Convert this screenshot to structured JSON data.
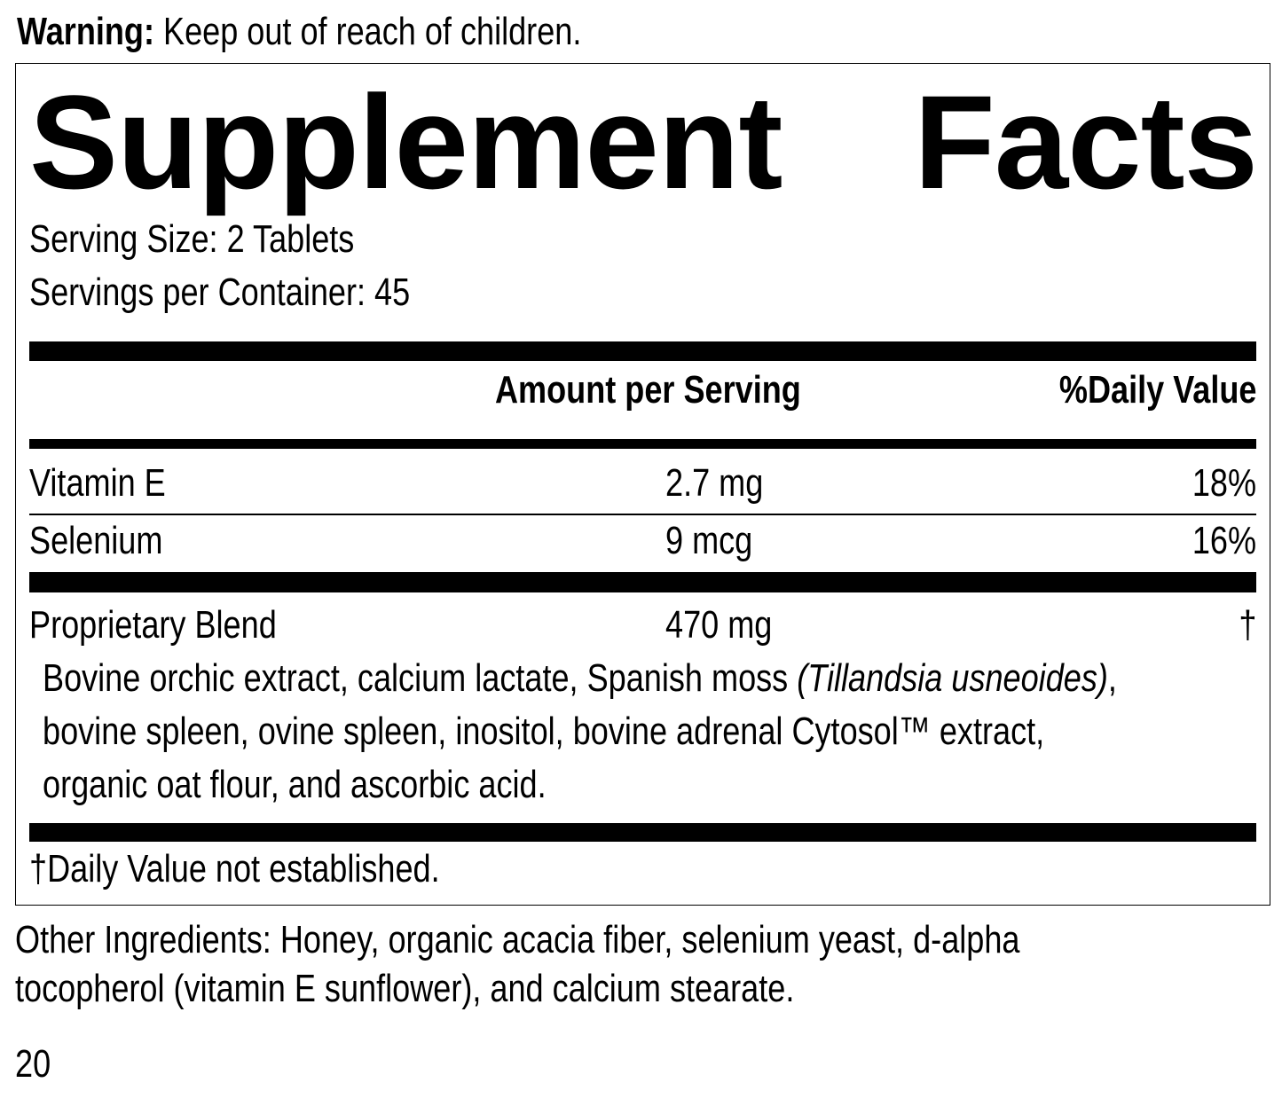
{
  "warning": {
    "label": "Warning:",
    "text": " Keep out of reach of children."
  },
  "title": {
    "word1": "Supplement",
    "word2": "Facts"
  },
  "serving_size": "Serving Size: 2 Tablets",
  "servings_per_container": "Servings per Container: 45",
  "header": {
    "amount": "Amount per Serving",
    "daily_value": "%Daily Value"
  },
  "rows": [
    {
      "name": "Vitamin E",
      "amount": "2.7 mg",
      "dv": "18%"
    },
    {
      "name": "Selenium",
      "amount": "9 mcg",
      "dv": "16%"
    },
    {
      "name": "Proprietary Blend",
      "amount": "470 mg",
      "dv": "†"
    }
  ],
  "blend": {
    "line1_a": "Bovine orchic extract, calcium lactate, Spanish moss ",
    "line1_italic": "(Tillandsia usneoides)",
    "line1_b": ",",
    "line2": "bovine spleen, ovine spleen, inositol, bovine adrenal Cytosol™ extract,",
    "line3": "organic oat flour, and ascorbic acid."
  },
  "footnote": "†Daily Value not established.",
  "other_ingredients": {
    "line1": "Other Ingredients: Honey, organic acacia fiber, selenium yeast, d-alpha",
    "line2": "tocopherol (vitamin E sunflower), and calcium stearate."
  },
  "page_number": "20"
}
